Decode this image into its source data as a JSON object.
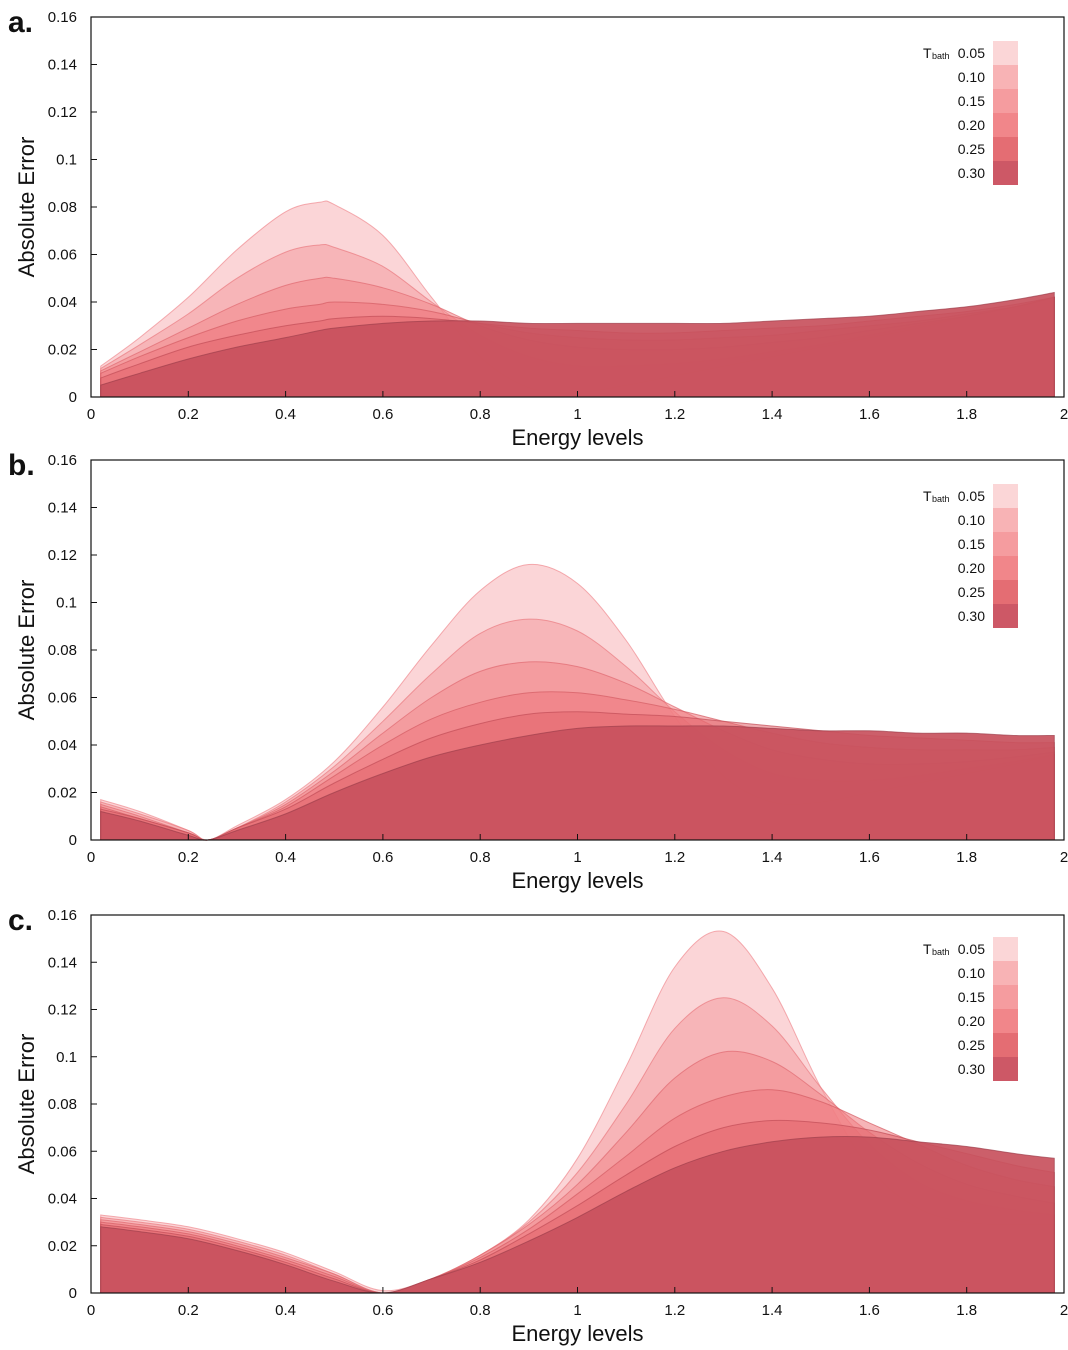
{
  "chart_data": [
    {
      "type": "area",
      "panel_label": "a.",
      "xlabel": "Energy levels",
      "ylabel": "Absolute Error",
      "xlim": [
        0,
        2
      ],
      "ylim": [
        0,
        0.16
      ],
      "xticks": [
        "0",
        "0.2",
        "0.4",
        "0.6",
        "0.8",
        "1",
        "1.2",
        "1.4",
        "1.6",
        "1.8",
        "2"
      ],
      "yticks": [
        "0",
        "0.02",
        "0.04",
        "0.06",
        "0.08",
        "0.1",
        "0.12",
        "0.14",
        "0.16"
      ],
      "x": [
        0.02,
        0.1,
        0.2,
        0.3,
        0.4,
        0.47,
        0.5,
        0.6,
        0.7,
        0.8,
        0.9,
        1.0,
        1.1,
        1.2,
        1.3,
        1.4,
        1.5,
        1.6,
        1.7,
        1.8,
        1.9,
        1.98
      ],
      "series": [
        {
          "name": "0.05",
          "values": [
            0.013,
            0.025,
            0.042,
            0.062,
            0.078,
            0.082,
            0.081,
            0.068,
            0.042,
            0.017,
            0.004,
            0.002,
            0.005,
            0.009,
            0.013,
            0.017,
            0.021,
            0.025,
            0.029,
            0.034,
            0.038,
            0.042
          ]
        },
        {
          "name": "0.10",
          "values": [
            0.012,
            0.022,
            0.035,
            0.05,
            0.061,
            0.064,
            0.063,
            0.055,
            0.04,
            0.026,
            0.017,
            0.013,
            0.013,
            0.014,
            0.016,
            0.019,
            0.022,
            0.026,
            0.03,
            0.034,
            0.038,
            0.042
          ]
        },
        {
          "name": "0.15",
          "values": [
            0.011,
            0.019,
            0.029,
            0.039,
            0.047,
            0.05,
            0.05,
            0.046,
            0.039,
            0.03,
            0.024,
            0.021,
            0.02,
            0.02,
            0.021,
            0.023,
            0.025,
            0.028,
            0.031,
            0.034,
            0.038,
            0.042
          ]
        },
        {
          "name": "0.20",
          "values": [
            0.01,
            0.017,
            0.025,
            0.032,
            0.037,
            0.039,
            0.04,
            0.039,
            0.036,
            0.031,
            0.027,
            0.025,
            0.024,
            0.024,
            0.025,
            0.026,
            0.028,
            0.03,
            0.032,
            0.035,
            0.038,
            0.042
          ]
        },
        {
          "name": "0.25",
          "values": [
            0.008,
            0.014,
            0.021,
            0.026,
            0.03,
            0.032,
            0.033,
            0.034,
            0.033,
            0.031,
            0.029,
            0.028,
            0.027,
            0.027,
            0.028,
            0.029,
            0.03,
            0.032,
            0.034,
            0.036,
            0.039,
            0.042
          ]
        },
        {
          "name": "0.30",
          "values": [
            0.005,
            0.01,
            0.016,
            0.021,
            0.025,
            0.028,
            0.029,
            0.031,
            0.032,
            0.032,
            0.031,
            0.031,
            0.031,
            0.031,
            0.031,
            0.032,
            0.033,
            0.034,
            0.036,
            0.038,
            0.041,
            0.044
          ]
        }
      ],
      "legend": {
        "title": "T",
        "title_sub": "bath",
        "entries": [
          "0.05",
          "0.10",
          "0.15",
          "0.20",
          "0.25",
          "0.30"
        ],
        "position": "top-right"
      }
    },
    {
      "type": "area",
      "panel_label": "b.",
      "xlabel": "Energy levels",
      "ylabel": "Absolute Error",
      "xlim": [
        0,
        2
      ],
      "ylim": [
        0,
        0.16
      ],
      "xticks": [
        "0",
        "0.2",
        "0.4",
        "0.6",
        "0.8",
        "1",
        "1.2",
        "1.4",
        "1.6",
        "1.8",
        "2"
      ],
      "yticks": [
        "0",
        "0.02",
        "0.04",
        "0.06",
        "0.08",
        "0.1",
        "0.12",
        "0.14",
        "0.16"
      ],
      "x": [
        0.02,
        0.1,
        0.2,
        0.24,
        0.3,
        0.4,
        0.5,
        0.6,
        0.7,
        0.8,
        0.9,
        1.0,
        1.1,
        1.2,
        1.3,
        1.4,
        1.5,
        1.6,
        1.7,
        1.8,
        1.9,
        1.98
      ],
      "series": [
        {
          "name": "0.05",
          "values": [
            0.017,
            0.012,
            0.004,
            0.0,
            0.006,
            0.017,
            0.033,
            0.056,
            0.082,
            0.105,
            0.116,
            0.108,
            0.084,
            0.052,
            0.027,
            0.016,
            0.016,
            0.02,
            0.024,
            0.028,
            0.032,
            0.036
          ]
        },
        {
          "name": "0.10",
          "values": [
            0.016,
            0.011,
            0.004,
            0.0,
            0.005,
            0.016,
            0.031,
            0.05,
            0.07,
            0.087,
            0.093,
            0.088,
            0.073,
            0.054,
            0.038,
            0.028,
            0.025,
            0.025,
            0.027,
            0.03,
            0.033,
            0.036
          ]
        },
        {
          "name": "0.15",
          "values": [
            0.015,
            0.01,
            0.003,
            0.0,
            0.005,
            0.015,
            0.029,
            0.045,
            0.06,
            0.071,
            0.075,
            0.073,
            0.066,
            0.056,
            0.046,
            0.038,
            0.034,
            0.032,
            0.032,
            0.033,
            0.035,
            0.037
          ]
        },
        {
          "name": "0.20",
          "values": [
            0.014,
            0.009,
            0.003,
            0.0,
            0.005,
            0.014,
            0.027,
            0.04,
            0.051,
            0.058,
            0.062,
            0.062,
            0.059,
            0.055,
            0.05,
            0.045,
            0.041,
            0.039,
            0.038,
            0.038,
            0.038,
            0.039
          ]
        },
        {
          "name": "0.25",
          "values": [
            0.013,
            0.009,
            0.003,
            0.0,
            0.005,
            0.013,
            0.024,
            0.034,
            0.043,
            0.049,
            0.053,
            0.054,
            0.053,
            0.052,
            0.05,
            0.048,
            0.046,
            0.044,
            0.043,
            0.042,
            0.041,
            0.041
          ]
        },
        {
          "name": "0.30",
          "values": [
            0.012,
            0.008,
            0.002,
            0.0,
            0.004,
            0.011,
            0.02,
            0.028,
            0.035,
            0.04,
            0.044,
            0.047,
            0.048,
            0.048,
            0.048,
            0.047,
            0.046,
            0.046,
            0.045,
            0.045,
            0.044,
            0.044
          ]
        }
      ],
      "legend": {
        "title": "T",
        "title_sub": "bath",
        "entries": [
          "0.05",
          "0.10",
          "0.15",
          "0.20",
          "0.25",
          "0.30"
        ],
        "position": "top-right"
      }
    },
    {
      "type": "area",
      "panel_label": "c.",
      "xlabel": "Energy levels",
      "ylabel": "Absolute Error",
      "xlim": [
        0,
        2
      ],
      "ylim": [
        0,
        0.16
      ],
      "xticks": [
        "0",
        "0.2",
        "0.4",
        "0.6",
        "0.8",
        "1",
        "1.2",
        "1.4",
        "1.6",
        "1.8",
        "2"
      ],
      "yticks": [
        "0",
        "0.02",
        "0.04",
        "0.06",
        "0.08",
        "0.1",
        "0.12",
        "0.14",
        "0.16"
      ],
      "x": [
        0.02,
        0.1,
        0.2,
        0.3,
        0.4,
        0.5,
        0.6,
        0.7,
        0.8,
        0.9,
        1.0,
        1.1,
        1.2,
        1.3,
        1.4,
        1.5,
        1.6,
        1.7,
        1.8,
        1.9,
        1.98
      ],
      "series": [
        {
          "name": "0.05",
          "values": [
            0.033,
            0.031,
            0.028,
            0.023,
            0.017,
            0.009,
            0.001,
            0.006,
            0.016,
            0.031,
            0.057,
            0.096,
            0.138,
            0.153,
            0.129,
            0.087,
            0.053,
            0.036,
            0.03,
            0.029,
            0.029
          ]
        },
        {
          "name": "0.10",
          "values": [
            0.032,
            0.03,
            0.027,
            0.022,
            0.016,
            0.008,
            0.0,
            0.006,
            0.016,
            0.03,
            0.051,
            0.08,
            0.112,
            0.125,
            0.113,
            0.087,
            0.063,
            0.047,
            0.039,
            0.035,
            0.033
          ]
        },
        {
          "name": "0.15",
          "values": [
            0.031,
            0.029,
            0.026,
            0.021,
            0.015,
            0.008,
            0.0,
            0.006,
            0.016,
            0.029,
            0.046,
            0.068,
            0.091,
            0.102,
            0.098,
            0.084,
            0.068,
            0.055,
            0.046,
            0.041,
            0.038
          ]
        },
        {
          "name": "0.20",
          "values": [
            0.03,
            0.028,
            0.025,
            0.02,
            0.014,
            0.007,
            0.0,
            0.006,
            0.015,
            0.027,
            0.042,
            0.058,
            0.074,
            0.083,
            0.086,
            0.081,
            0.072,
            0.063,
            0.054,
            0.048,
            0.045
          ]
        },
        {
          "name": "0.25",
          "values": [
            0.029,
            0.027,
            0.024,
            0.019,
            0.013,
            0.006,
            0.0,
            0.006,
            0.014,
            0.025,
            0.037,
            0.05,
            0.062,
            0.07,
            0.073,
            0.072,
            0.069,
            0.064,
            0.059,
            0.054,
            0.051
          ]
        },
        {
          "name": "0.30",
          "values": [
            0.028,
            0.026,
            0.023,
            0.018,
            0.012,
            0.005,
            0.0,
            0.006,
            0.013,
            0.022,
            0.032,
            0.043,
            0.053,
            0.06,
            0.064,
            0.066,
            0.066,
            0.064,
            0.062,
            0.059,
            0.057
          ]
        }
      ],
      "legend": {
        "title": "T",
        "title_sub": "bath",
        "entries": [
          "0.05",
          "0.10",
          "0.15",
          "0.20",
          "0.25",
          "0.30"
        ],
        "position": "top-right"
      }
    }
  ],
  "colors": {
    "series_fills": [
      "#f7b3b6",
      "#f49a9e",
      "#f2878b",
      "#ee767b",
      "#e2646b",
      "#c8515d"
    ],
    "series_strokes": [
      "#f08a90",
      "#e97a80",
      "#e06a71",
      "#d45c64",
      "#c24d57",
      "#9e3f4c"
    ],
    "legend_swatches": [
      "#fbd6d7",
      "#f8b3b5",
      "#f59c9f",
      "#f1868a",
      "#e46d73",
      "#cd5866"
    ],
    "axis": "#111111"
  }
}
